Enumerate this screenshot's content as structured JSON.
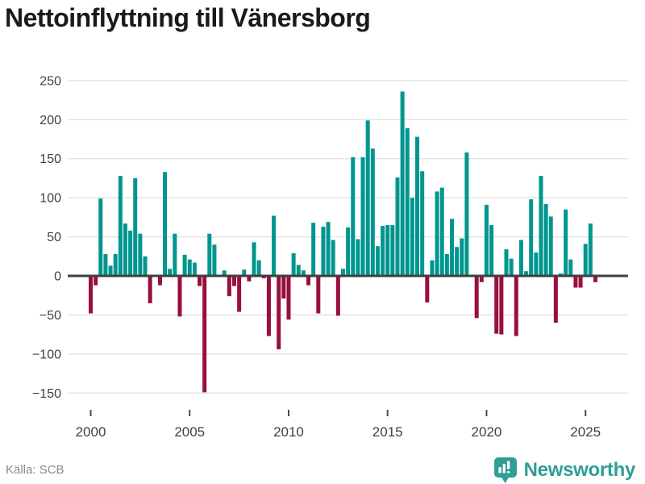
{
  "header": {
    "title": "Nettoinflyttning till Vänersborg"
  },
  "footer": {
    "source": "Källa: SCB",
    "brand": "Newsworthy",
    "brand_icon": "newsworthy-speech-bubble-barchart-icon"
  },
  "colors": {
    "positive_bar": "#00968f",
    "negative_bar": "#990f3d",
    "gridline": "#e4e4e4",
    "zero_line": "#3f3f3f",
    "axis_text": "#404040",
    "tick_mark": "#4a4a4a",
    "title_text": "#1a1a1a",
    "source_text": "#8a8a8a",
    "brand_teal": "#2f9e95"
  },
  "chart_data": {
    "type": "bar",
    "title": "Nettoinflyttning till Vänersborg",
    "xlabel": "",
    "ylabel": "",
    "x_unit": "quarter",
    "x_start": "2000 Q1",
    "x_end": "2025 Q3",
    "x_step_years": 0.25,
    "x_tick_years": [
      2000,
      2005,
      2010,
      2015,
      2020,
      2025
    ],
    "y_ticks": [
      250,
      200,
      150,
      100,
      50,
      0,
      -50,
      -100,
      -150
    ],
    "ylim": [
      -150,
      250
    ],
    "grid": "horizontal",
    "legend": "none",
    "series": [
      {
        "name": "Nettoinflyttning",
        "values": [
          -48,
          -12,
          99,
          28,
          13,
          28,
          128,
          67,
          58,
          125,
          54,
          25,
          -35,
          0,
          -12,
          133,
          9,
          54,
          -52,
          27,
          21,
          17,
          -13,
          -149,
          54,
          40,
          0,
          7,
          -26,
          -13,
          -46,
          8,
          -7,
          43,
          20,
          -3,
          -77,
          77,
          -94,
          -29,
          -56,
          29,
          14,
          7,
          -12,
          68,
          -48,
          63,
          69,
          46,
          -51,
          9,
          62,
          152,
          47,
          152,
          199,
          163,
          38,
          64,
          65,
          65,
          126,
          236,
          189,
          100,
          178,
          134,
          -34,
          20,
          108,
          113,
          28,
          73,
          37,
          48,
          158,
          0,
          -54,
          -8,
          91,
          65,
          -74,
          -75,
          34,
          22,
          -77,
          46,
          6,
          98,
          30,
          128,
          92,
          76,
          -60,
          3,
          85,
          21,
          -15,
          -15,
          41,
          67,
          -8
        ]
      }
    ]
  }
}
